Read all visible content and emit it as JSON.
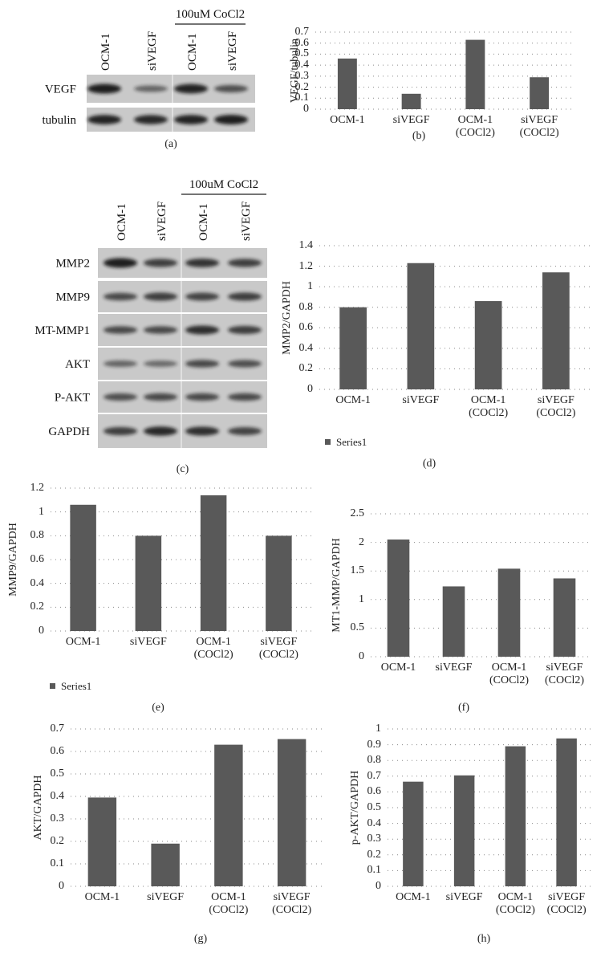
{
  "blots": [
    {
      "label": "(a)",
      "treatment": "100uM CoCl2",
      "lanes": [
        "OCM-1",
        "siVEGF",
        "OCM-1",
        "siVEGF"
      ],
      "rows": [
        "VEGF",
        "tubulin"
      ]
    },
    {
      "label": "(c)",
      "treatment": "100uM CoCl2",
      "lanes": [
        "OCM-1",
        "siVEGF",
        "OCM-1",
        "siVEGF"
      ],
      "rows": [
        "MMP2",
        "MMP9",
        "MT-MMP1",
        "AKT",
        "P-AKT",
        "GAPDH"
      ]
    }
  ],
  "chart_data": [
    {
      "type": "bar",
      "label": "(b)",
      "y_label": "VEGF/tubulin",
      "categories": [
        "OCM-1",
        "siVEGF",
        "OCM-1\n(COCl2)",
        "siVEGF\n(COCl2)"
      ],
      "series": [
        {
          "color": "#595959",
          "values": [
            0.46,
            0.14,
            0.63,
            0.29
          ]
        }
      ],
      "ylim": [
        0,
        0.7
      ],
      "yticks": [
        0,
        0.1,
        0.2,
        0.3,
        0.4,
        0.5,
        0.6,
        0.7
      ],
      "grid": true
    },
    {
      "type": "bar",
      "label": "(d)",
      "y_label": "MMP2/GAPDH",
      "categories": [
        "OCM-1",
        "siVEGF",
        "OCM-1\n(COCl2)",
        "siVEGF\n(COCl2)"
      ],
      "series": [
        {
          "name": "Series1",
          "color": "#595959",
          "values": [
            0.8,
            1.23,
            0.86,
            1.14
          ]
        }
      ],
      "ylim": [
        0,
        1.4
      ],
      "yticks": [
        0,
        0.2,
        0.4,
        0.6,
        0.8,
        1,
        1.2,
        1.4
      ],
      "grid": true,
      "legend": "bottom-left"
    },
    {
      "type": "bar",
      "label": "(e)",
      "y_label": "MMP9/GAPDH",
      "categories": [
        "OCM-1",
        "siVEGF",
        "OCM-1\n(COCl2)",
        "siVEGF\n(COCl2)"
      ],
      "series": [
        {
          "name": "Series1",
          "color": "#595959",
          "values": [
            1.06,
            0.8,
            1.14,
            0.8
          ]
        }
      ],
      "ylim": [
        0,
        1.2
      ],
      "yticks": [
        0,
        0.2,
        0.4,
        0.6,
        0.8,
        1,
        1.2
      ],
      "grid": true,
      "legend": "bottom-left"
    },
    {
      "type": "bar",
      "label": "(f)",
      "y_label": "MT1-MMP/GAPDH",
      "categories": [
        "OCM-1",
        "siVEGF",
        "OCM-1\n(COCl2)",
        "siVEGF\n(COCl2)"
      ],
      "series": [
        {
          "color": "#595959",
          "values": [
            2.05,
            1.23,
            1.54,
            1.37
          ]
        }
      ],
      "ylim": [
        0,
        2.5
      ],
      "yticks": [
        0,
        0.5,
        1,
        1.5,
        2,
        2.5
      ],
      "grid": true
    },
    {
      "type": "bar",
      "label": "(g)",
      "y_label": "AKT/GAPDH",
      "categories": [
        "OCM-1",
        "siVEGF",
        "OCM-1\n(COCl2)",
        "siVEGF\n(COCl2)"
      ],
      "series": [
        {
          "color": "#595959",
          "values": [
            0.395,
            0.19,
            0.63,
            0.655
          ]
        }
      ],
      "ylim": [
        0,
        0.7
      ],
      "yticks": [
        0,
        0.1,
        0.2,
        0.3,
        0.4,
        0.5,
        0.6,
        0.7
      ],
      "grid": true
    },
    {
      "type": "bar",
      "label": "(h)",
      "y_label": "p-AKT/GAPDH",
      "categories": [
        "OCM-1",
        "siVEGF",
        "OCM-1\n(COCl2)",
        "siVEGF\n(COCl2)"
      ],
      "series": [
        {
          "color": "#595959",
          "values": [
            0.665,
            0.705,
            0.89,
            0.94
          ]
        }
      ],
      "ylim": [
        0,
        1
      ],
      "yticks": [
        0,
        0.1,
        0.2,
        0.3,
        0.4,
        0.5,
        0.6,
        0.7,
        0.8,
        0.9,
        1
      ],
      "grid": true
    }
  ]
}
